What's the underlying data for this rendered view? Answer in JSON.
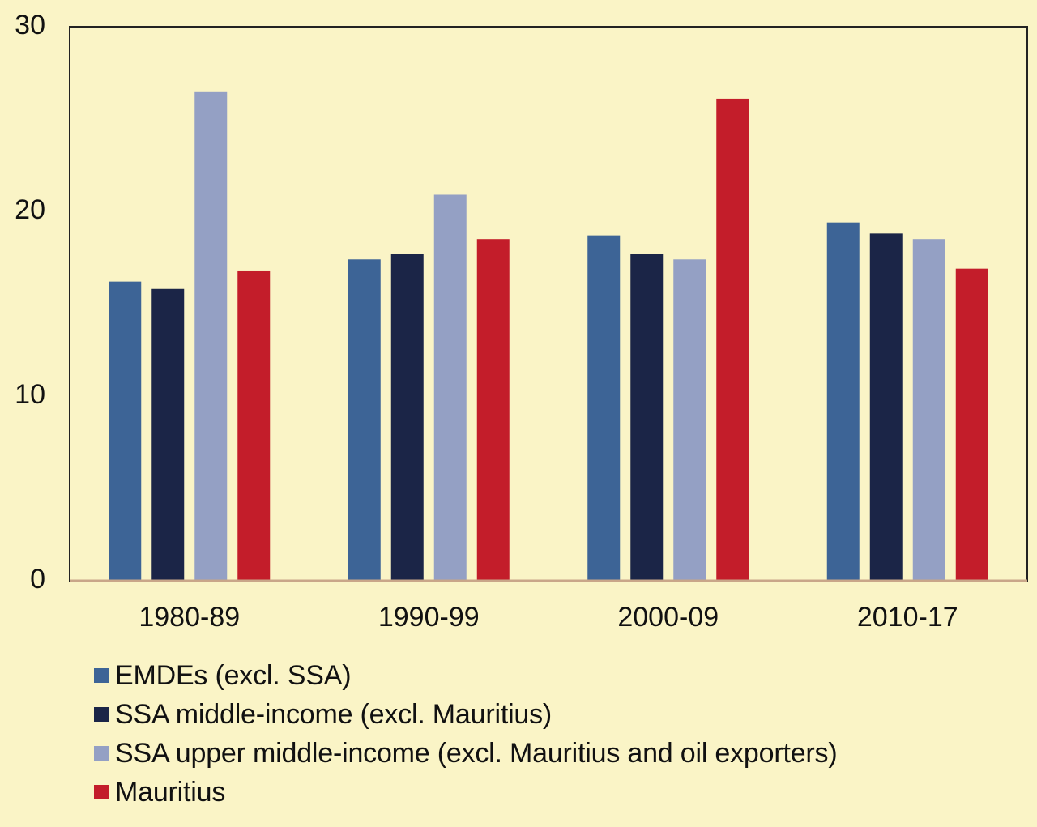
{
  "chart_data": {
    "type": "bar",
    "title": "",
    "xlabel": "",
    "ylabel": "",
    "ylim": [
      0,
      30
    ],
    "yticks": [
      "0",
      "10",
      "20",
      "30"
    ],
    "categories": [
      "1980-89",
      "1990-99",
      "2000-09",
      "2010-17"
    ],
    "series": [
      {
        "name": "EMDEs (excl. SSA)",
        "color": "#3d6496",
        "values": [
          16.2,
          17.4,
          18.7,
          19.4
        ]
      },
      {
        "name": "SSA middle-income (excl. Mauritius)",
        "color": "#1b2547",
        "values": [
          15.8,
          17.7,
          17.7,
          18.8
        ]
      },
      {
        "name": "SSA upper middle-income (excl. Mauritius and oil exporters)",
        "color": "#94a0c4",
        "values": [
          26.5,
          20.9,
          17.4,
          18.5
        ]
      },
      {
        "name": "Mauritius",
        "color": "#c31d2a",
        "values": [
          16.8,
          18.5,
          26.1,
          16.9
        ]
      }
    ],
    "grid": false,
    "legend_position": "bottom-left"
  },
  "colors": {
    "background": "#faf4c6",
    "axis": "#c9a689",
    "frame": "#222222"
  }
}
